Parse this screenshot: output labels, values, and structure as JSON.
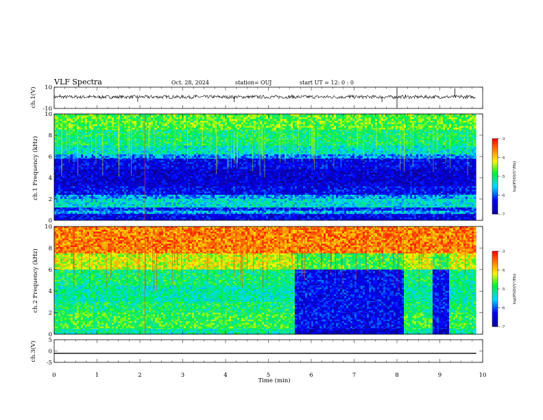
{
  "header": {
    "title": "VLF Spectra",
    "date": "Oct. 28, 2024",
    "station": "station= OUJ",
    "start": "start  UT  =   12: 0  : 0"
  },
  "chart_data": [
    {
      "type": "line",
      "name": "ch1-waveform",
      "ylabel": "ch.1(V)",
      "ylim": [
        -10,
        10
      ],
      "yticks": [
        "10",
        "-10"
      ],
      "xlim": [
        0,
        10
      ],
      "baseline": 0.8,
      "spikes": [
        [
          0.13,
          3
        ],
        [
          1.95,
          -4
        ],
        [
          3.3,
          3
        ],
        [
          4.2,
          -4
        ],
        [
          5.55,
          3
        ],
        [
          6.9,
          3
        ],
        [
          7.65,
          -4
        ],
        [
          8.0,
          9
        ],
        [
          8.0,
          -9
        ],
        [
          8.2,
          3
        ],
        [
          9.35,
          9
        ],
        [
          9.5,
          3
        ]
      ]
    },
    {
      "type": "heatmap",
      "name": "ch1-spectrogram",
      "ylabel": "ch.1 Frequency (kHz)",
      "ylim": [
        0,
        10
      ],
      "yticks": [
        "0",
        "2",
        "4",
        "6",
        "8",
        "10"
      ],
      "xlim": [
        0,
        10
      ],
      "bands": [
        [
          8.5,
          10,
          0.58
        ],
        [
          7.0,
          8.5,
          0.5
        ],
        [
          6.2,
          7.0,
          0.42
        ],
        [
          5.8,
          6.2,
          0.3
        ],
        [
          4.8,
          5.8,
          0.14
        ],
        [
          3.2,
          4.8,
          0.1
        ],
        [
          2.4,
          3.2,
          0.16
        ],
        [
          2.0,
          2.4,
          0.32
        ],
        [
          1.2,
          2.0,
          0.4
        ],
        [
          0.9,
          1.2,
          0.2
        ],
        [
          0.6,
          0.9,
          0.33
        ],
        [
          0,
          0.6,
          0.14
        ]
      ],
      "colorbar": {
        "label": "log(PSD)(V²/Hz)",
        "ticks": [
          "-3",
          "-4",
          "-5",
          "-6",
          "-7"
        ]
      }
    },
    {
      "type": "heatmap",
      "name": "ch2-spectrogram",
      "ylabel": "ch.2 Frequency (kHz)",
      "ylim": [
        0,
        10
      ],
      "yticks": [
        "0",
        "2",
        "4",
        "6",
        "8",
        "10"
      ],
      "xlim": [
        0,
        10
      ],
      "bands": [
        [
          7.5,
          10,
          0.85
        ],
        [
          6.0,
          7.5,
          0.68
        ],
        [
          4.5,
          6.0,
          0.5
        ],
        [
          3.0,
          4.5,
          0.45
        ],
        [
          2.0,
          3.0,
          0.5
        ],
        [
          0.5,
          2.0,
          0.55
        ],
        [
          0,
          0.5,
          0.45
        ]
      ],
      "quiet_intervals": [
        [
          5.6,
          8.15
        ],
        [
          8.8,
          9.2
        ]
      ],
      "colorbar": {
        "label": "log(PSD)(V²/Hz)",
        "ticks": [
          "-3",
          "-4",
          "-5",
          "-6",
          "-7"
        ]
      }
    },
    {
      "type": "line",
      "name": "ch3-waveform",
      "ylabel": "ch.3(V)",
      "ylim": [
        -5,
        5
      ],
      "yticks": [
        "5",
        "0",
        "-5"
      ],
      "xlim": [
        0,
        10
      ],
      "baseline": -1.0
    }
  ],
  "xaxis": {
    "label": "Time  (min)",
    "ticks": [
      "0",
      "1",
      "2",
      "3",
      "4",
      "5",
      "6",
      "7",
      "8",
      "9",
      "10"
    ]
  }
}
